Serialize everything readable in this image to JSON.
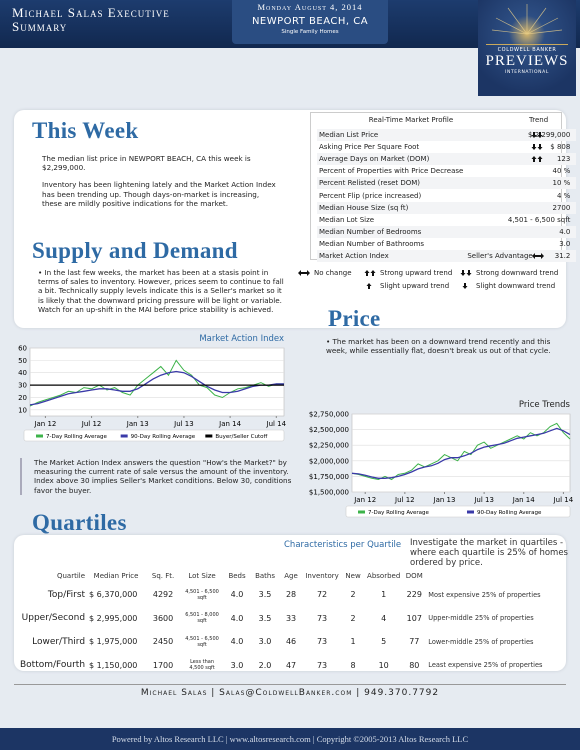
{
  "header": {
    "title_line1": "Michael Salas Executive",
    "title_line2": "Summary",
    "date": "Monday August 4, 2014",
    "location": "NEWPORT BEACH, CA",
    "property_type": "Single Family Homes",
    "logo": {
      "brand": "COLDWELL BANKER",
      "name": "PREVIEWS",
      "sub": "INTERNATIONAL"
    }
  },
  "this_week": {
    "heading": "This Week",
    "paragraphs": [
      "The median list price in NEWPORT BEACH, CA this week is $2,299,000.",
      "Inventory has been lightening lately and the Market Action Index has been trending up. Though days-on-market is increasing, these are mildly positive indications for the market."
    ]
  },
  "market_profile": {
    "title": "Real-Time Market Profile",
    "trend_header": "Trend",
    "rows": [
      [
        "Median List Price",
        "$ 2,299,000"
      ],
      [
        "Asking Price Per Square Foot",
        "$ 808"
      ],
      [
        "Average Days on Market (DOM)",
        "123"
      ],
      [
        "Percent of Properties with Price Decrease",
        "40 %"
      ],
      [
        "Percent Relisted (reset DOM)",
        "10 %"
      ],
      [
        "Percent Flip (price increased)",
        "4 %"
      ],
      [
        "Median House Size (sq ft)",
        "2700"
      ],
      [
        "Median Lot Size",
        "4,501 - 6,500 sqft"
      ],
      [
        "Median Number of Bedrooms",
        "4.0"
      ],
      [
        "Median Number of Bathrooms",
        "3.0"
      ],
      [
        "Market Action Index",
        "Seller's Advantage",
        "31.2"
      ]
    ]
  },
  "trend_legend": [
    "No change",
    "Strong upward trend",
    "Strong downward trend",
    "Slight upward trend",
    "Slight downward trend"
  ],
  "supply_demand": {
    "heading": "Supply and Demand",
    "paragraph": "In the last few weeks, the market has been at a stasis point in terms of sales to inventory.  However, prices seem to continue to fall a bit.  Technically supply levels indicate this is a Seller's market so it is likely that the downward pricing pressure will be light or variable.  Watch for an up-shift in the MAI before price stability is achieved."
  },
  "price": {
    "heading": "Price",
    "paragraph": "The market has been on a downward trend recently and this week, while essentially flat, doesn't break us out of that cycle."
  },
  "mai_note": "The Market Action Index answers the question \"How's the Market?\" by measuring the current rate of sale versus the amount of the inventory.  Index above 30 implies Seller's Market conditions. Below 30, conditions favor the buyer.",
  "chart_data": [
    {
      "type": "line",
      "title": "Market Action Index",
      "categories": [
        null,
        null,
        "Jan 12",
        null,
        null,
        null,
        null,
        null,
        "Jul 12",
        null,
        null,
        null,
        null,
        null,
        "Jan 13",
        null,
        null,
        null,
        null,
        null,
        "Jul 13",
        null,
        null,
        null,
        null,
        null,
        "Jan 14",
        null,
        null,
        null,
        null,
        null,
        "Jul 14",
        null
      ],
      "series": [
        {
          "name": "7-Day Rolling Average",
          "color": "#3db34a",
          "values": [
            13,
            16,
            18,
            20,
            22,
            25,
            24,
            28,
            27,
            30,
            26,
            28,
            24,
            22,
            30,
            35,
            40,
            45,
            38,
            50,
            42,
            38,
            30,
            28,
            22,
            20,
            24,
            27,
            28,
            30,
            32,
            29,
            31,
            31
          ]
        },
        {
          "name": "90-Day Rolling Average",
          "color": "#3a3aa8",
          "values": [
            14,
            15,
            17,
            19,
            21,
            23,
            24,
            25,
            26,
            27,
            27,
            26,
            25,
            25,
            27,
            31,
            35,
            38,
            40,
            41,
            40,
            37,
            33,
            29,
            26,
            24,
            24,
            25,
            27,
            29,
            30,
            30,
            31,
            31
          ]
        },
        {
          "name": "Buyer/Seller Cutoff",
          "color": "#000000",
          "values": [
            30,
            30,
            30,
            30,
            30,
            30,
            30,
            30,
            30,
            30,
            30,
            30,
            30,
            30,
            30,
            30,
            30,
            30,
            30,
            30,
            30,
            30,
            30,
            30,
            30,
            30,
            30,
            30,
            30,
            30,
            30,
            30,
            30,
            30
          ]
        }
      ],
      "ylim": [
        5,
        60
      ],
      "yticks": [
        10,
        20,
        30,
        40,
        50,
        60
      ],
      "grid": true
    },
    {
      "type": "line",
      "title": "Price Trends",
      "categories": [
        null,
        null,
        "Jan 12",
        null,
        null,
        null,
        null,
        null,
        "Jul 12",
        null,
        null,
        null,
        null,
        null,
        "Jan 13",
        null,
        null,
        null,
        null,
        null,
        "Jul 13",
        null,
        null,
        null,
        null,
        null,
        "Jan 14",
        null,
        null,
        null,
        null,
        null,
        "Jul 14",
        null
      ],
      "series": [
        {
          "name": "7-Day Rolling Average",
          "color": "#3db34a",
          "values": [
            1800000,
            1780000,
            1750000,
            1720000,
            1700000,
            1750000,
            1700000,
            1780000,
            1800000,
            1850000,
            1950000,
            1900000,
            1950000,
            2000000,
            2100000,
            2050000,
            2000000,
            2150000,
            2100000,
            2250000,
            2300000,
            2200000,
            2250000,
            2300000,
            2350000,
            2400000,
            2350000,
            2450000,
            2400000,
            2450000,
            2550000,
            2600000,
            2450000,
            2350000
          ]
        },
        {
          "name": "90-Day Rolling Average",
          "color": "#3a3aa8",
          "values": [
            1800000,
            1790000,
            1770000,
            1740000,
            1720000,
            1720000,
            1730000,
            1750000,
            1780000,
            1820000,
            1870000,
            1900000,
            1920000,
            1960000,
            2020000,
            2050000,
            2050000,
            2080000,
            2120000,
            2180000,
            2220000,
            2240000,
            2260000,
            2280000,
            2320000,
            2360000,
            2380000,
            2400000,
            2420000,
            2440000,
            2480000,
            2520000,
            2480000,
            2420000
          ]
        }
      ],
      "ylim": [
        1500000,
        2750000
      ],
      "yticks": [
        {
          "value": 1500000,
          "label": "$1,500,000"
        },
        {
          "value": 1750000,
          "label": "$1,750,000"
        },
        {
          "value": 2000000,
          "label": "$2,000,000"
        },
        {
          "value": 2250000,
          "label": "$2,250,000"
        },
        {
          "value": 2500000,
          "label": "$2,500,000"
        },
        {
          "value": 2750000,
          "label": "$2,750,000"
        }
      ],
      "grid": true
    }
  ],
  "quartiles": {
    "heading": "Quartiles",
    "subheading": "Characteristics per Quartile",
    "intro": "Investigate the market in quartiles - where each quartile is 25% of homes ordered by price.",
    "columns": [
      "Quartile",
      "Median Price",
      "Sq. Ft.",
      "Lot Size",
      "Beds",
      "Baths",
      "Age",
      "Inventory",
      "New",
      "Absorbed",
      "DOM"
    ],
    "rows": [
      [
        "Top/First",
        "$ 6,370,000",
        "4292",
        "4,501 - 6,500 sqft",
        "4.0",
        "3.5",
        "28",
        "72",
        "2",
        "1",
        "229",
        "Most expensive 25% of properties"
      ],
      [
        "Upper/Second",
        "$ 2,995,000",
        "3600",
        "6,501 - 8,000 sqft",
        "4.0",
        "3.5",
        "33",
        "73",
        "2",
        "4",
        "107",
        "Upper-middle 25% of properties"
      ],
      [
        "Lower/Third",
        "$ 1,975,000",
        "2450",
        "4,501 - 6,500 sqft",
        "4.0",
        "3.0",
        "46",
        "73",
        "1",
        "5",
        "77",
        "Lower-middle 25% of properties"
      ],
      [
        "Bottom/Fourth",
        "$ 1,150,000",
        "1700",
        "Less than 4,500 sqft",
        "3.0",
        "2.0",
        "47",
        "73",
        "8",
        "10",
        "80",
        "Least expensive 25% of properties"
      ]
    ]
  },
  "contact": "Michael Salas | Salas@ColdwellBanker.com | 949.370.7792",
  "footer": "Powered by Altos Research LLC | www.altosresearch.com | Copyright ©2005-2013 Altos Research LLC"
}
